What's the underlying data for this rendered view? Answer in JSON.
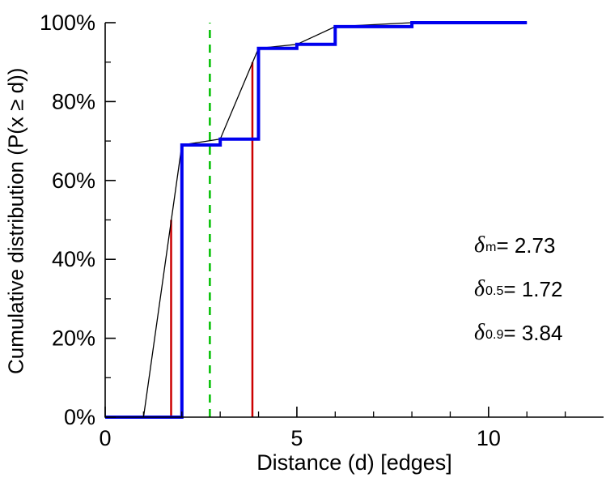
{
  "figure": {
    "background": "#ffffff"
  },
  "chart_data": {
    "type": "line",
    "title": "",
    "xlabel": "Distance (d) [edges]",
    "ylabel": "Cumulative distribution (P(x ≥ d))",
    "xlim": [
      0,
      13
    ],
    "ylim": [
      0,
      100
    ],
    "grid": false,
    "axes_color": "#000000",
    "x_ticks": [
      {
        "v": 0,
        "label": "0"
      },
      {
        "v": 5,
        "label": "5"
      },
      {
        "v": 10,
        "label": "10"
      }
    ],
    "x_minor_ticks": [
      1,
      2,
      3,
      4,
      6,
      7,
      8,
      9,
      11,
      12
    ],
    "y_ticks": [
      {
        "v": 0,
        "label": "0%"
      },
      {
        "v": 20,
        "label": "20%"
      },
      {
        "v": 40,
        "label": "40%"
      },
      {
        "v": 60,
        "label": "60%"
      },
      {
        "v": 80,
        "label": "80%"
      },
      {
        "v": 100,
        "label": "100%"
      }
    ],
    "y_minor_ticks": [
      10,
      30,
      50,
      70,
      90
    ],
    "series": [
      {
        "name": "linear-interpolation-line",
        "type": "line",
        "color": "#000000",
        "width": 1.3,
        "x": [
          1,
          2,
          3,
          4,
          5,
          6,
          8,
          11
        ],
        "y": [
          0,
          69,
          70.5,
          93.5,
          94.5,
          99,
          100,
          100
        ]
      },
      {
        "name": "cumulative-distribution-step",
        "type": "step",
        "color": "#0000ee",
        "width": 4,
        "x": [
          0,
          2,
          3,
          4,
          5,
          6,
          8,
          11
        ],
        "y": [
          0,
          69,
          70.5,
          93.5,
          94.5,
          99,
          100,
          100
        ]
      }
    ],
    "vlines": [
      {
        "name": "median-marker-line",
        "x": 1.72,
        "y0": 0,
        "y1": 50,
        "color": "#cc0000",
        "width": 2.5,
        "dash": ""
      },
      {
        "name": "p90-marker-line",
        "x": 3.84,
        "y0": 0,
        "y1": 90,
        "color": "#cc0000",
        "width": 2.5,
        "dash": ""
      },
      {
        "name": "mean-marker-line",
        "x": 2.73,
        "y0": 0,
        "y1": 100,
        "color": "#00bf00",
        "width": 2.5,
        "dash": "10 8"
      }
    ],
    "annotations": [
      {
        "sym": "δ",
        "sub": "m",
        "rhs": " = 2.73"
      },
      {
        "sym": "δ",
        "sub": "0.5",
        "rhs": " = 1.72"
      },
      {
        "sym": "δ",
        "sub": "0.9",
        "rhs": " = 3.84"
      }
    ]
  }
}
